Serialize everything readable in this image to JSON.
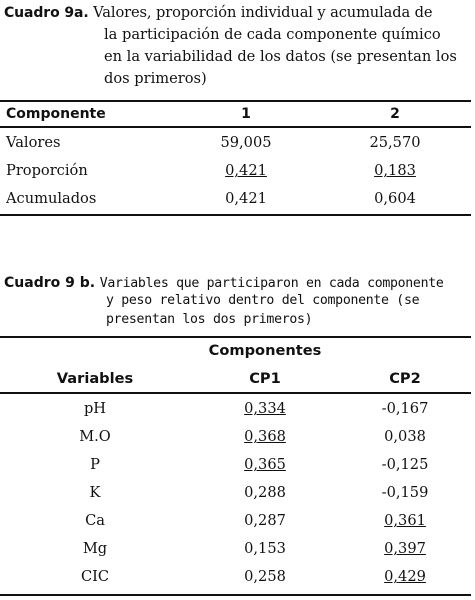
{
  "table_a": {
    "label": "Cuadro 9a.",
    "caption_lines": [
      "Valores, proporción individual y acumulada de",
      "la participación de cada componente químico",
      "en la variabilidad de los datos (se presentan los",
      "dos primeros)"
    ],
    "headers": [
      "Componente",
      "1",
      "2"
    ],
    "rows": [
      {
        "label": "Valores",
        "v1": "59,005",
        "v2": "25,570",
        "u1": false,
        "u2": false
      },
      {
        "label": "Proporción",
        "v1": "0,421",
        "v2": "0,183",
        "u1": true,
        "u2": true
      },
      {
        "label": "Acumulados",
        "v1": "0,421",
        "v2": "0,604",
        "u1": false,
        "u2": false
      }
    ]
  },
  "table_b": {
    "label": "Cuadro 9 b.",
    "caption_lines": [
      "Variables que participaron en cada componente",
      "y peso relativo dentro del componente (se",
      "presentan los dos primeros)"
    ],
    "group_header": "Componentes",
    "headers": [
      "Variables",
      "CP1",
      "CP2"
    ],
    "rows": [
      {
        "label": "pH",
        "v1": "0,334",
        "v2": "-0,167",
        "u1": true,
        "u2": false
      },
      {
        "label": "M.O",
        "v1": "0,368",
        "v2": "0,038",
        "u1": true,
        "u2": false
      },
      {
        "label": "P",
        "v1": "0,365",
        "v2": "-0,125",
        "u1": true,
        "u2": false
      },
      {
        "label": "K",
        "v1": "0,288",
        "v2": "-0,159",
        "u1": false,
        "u2": false
      },
      {
        "label": "Ca",
        "v1": "0,287",
        "v2": "0,361",
        "u1": false,
        "u2": true
      },
      {
        "label": "Mg",
        "v1": "0,153",
        "v2": "0,397",
        "u1": false,
        "u2": true
      },
      {
        "label": "CIC",
        "v1": "0,258",
        "v2": "0,429",
        "u1": false,
        "u2": true
      }
    ]
  }
}
